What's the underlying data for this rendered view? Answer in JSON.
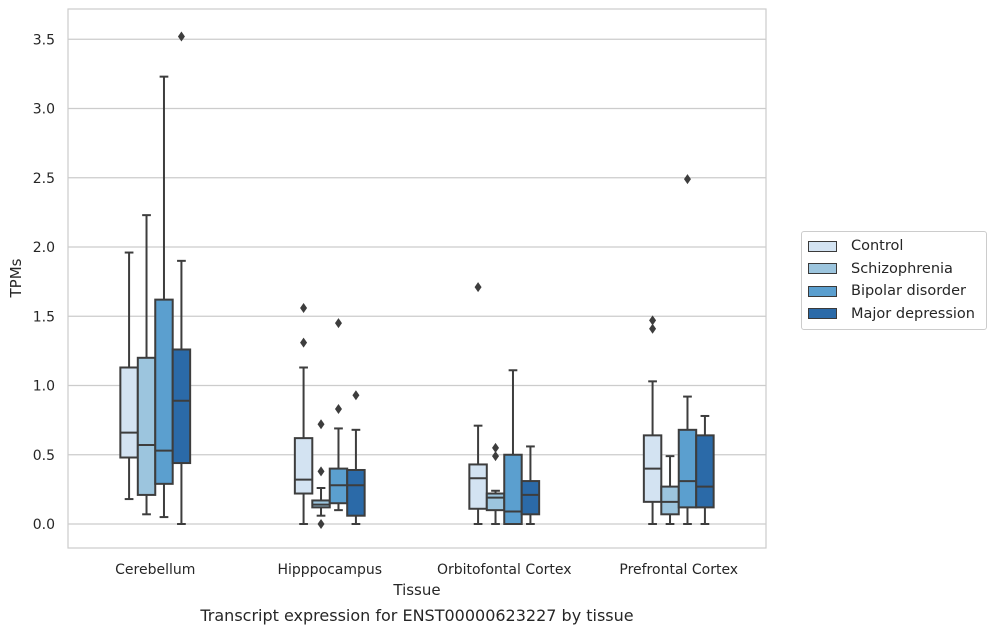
{
  "caption": "Transcript expression for ENST00000623227 by tissue",
  "chart_data": {
    "type": "box",
    "xlabel": "Tissue",
    "ylabel": "TPMs",
    "ylim": [
      -0.17,
      3.7
    ],
    "yticks": [
      0.0,
      0.5,
      1.0,
      1.5,
      2.0,
      2.5,
      3.0,
      3.5
    ],
    "ytick_labels": [
      "0.0",
      "0.5",
      "1.0",
      "1.5",
      "2.0",
      "2.5",
      "3.0",
      "3.5"
    ],
    "grid": "horizontal",
    "legend_position": "right",
    "categories": [
      "Cerebellum",
      "Hipppocampus",
      "Orbitofontal Cortex",
      "Prefrontal Cortex"
    ],
    "series": [
      {
        "name": "Control",
        "color": "#d3e3f2",
        "boxes": [
          {
            "whislo": 0.18,
            "q1": 0.48,
            "med": 0.66,
            "q3": 1.13,
            "whishi": 1.96,
            "fliers": []
          },
          {
            "whislo": 0.0,
            "q1": 0.22,
            "med": 0.32,
            "q3": 0.62,
            "whishi": 1.13,
            "fliers": [
              1.31,
              1.56
            ]
          },
          {
            "whislo": 0.0,
            "q1": 0.11,
            "med": 0.33,
            "q3": 0.43,
            "whishi": 0.71,
            "fliers": [
              1.71
            ]
          },
          {
            "whislo": 0.0,
            "q1": 0.16,
            "med": 0.4,
            "q3": 0.64,
            "whishi": 1.03,
            "fliers": [
              1.41,
              1.47
            ]
          }
        ]
      },
      {
        "name": "Schizophrenia",
        "color": "#9cc5de",
        "boxes": [
          {
            "whislo": 0.07,
            "q1": 0.21,
            "med": 0.57,
            "q3": 1.2,
            "whishi": 2.23,
            "fliers": []
          },
          {
            "whislo": 0.06,
            "q1": 0.12,
            "med": 0.14,
            "q3": 0.17,
            "whishi": 0.26,
            "fliers": [
              0.38,
              0.72,
              0.0
            ]
          },
          {
            "whislo": 0.0,
            "q1": 0.1,
            "med": 0.19,
            "q3": 0.22,
            "whishi": 0.24,
            "fliers": [
              0.49,
              0.55
            ]
          },
          {
            "whislo": 0.0,
            "q1": 0.07,
            "med": 0.16,
            "q3": 0.27,
            "whishi": 0.49,
            "fliers": []
          }
        ]
      },
      {
        "name": "Bipolar disorder",
        "color": "#5b9fcf",
        "boxes": [
          {
            "whislo": 0.05,
            "q1": 0.29,
            "med": 0.53,
            "q3": 1.62,
            "whishi": 3.23,
            "fliers": []
          },
          {
            "whislo": 0.1,
            "q1": 0.15,
            "med": 0.28,
            "q3": 0.4,
            "whishi": 0.69,
            "fliers": [
              0.83,
              1.45
            ]
          },
          {
            "whislo": 0.0,
            "q1": 0.0,
            "med": 0.09,
            "q3": 0.5,
            "whishi": 1.11,
            "fliers": []
          },
          {
            "whislo": 0.0,
            "q1": 0.12,
            "med": 0.31,
            "q3": 0.68,
            "whishi": 0.92,
            "fliers": [
              2.49
            ]
          }
        ]
      },
      {
        "name": "Major depression",
        "color": "#2b6aa8",
        "boxes": [
          {
            "whislo": 0.0,
            "q1": 0.44,
            "med": 0.89,
            "q3": 1.26,
            "whishi": 1.9,
            "fliers": [
              3.52
            ]
          },
          {
            "whislo": 0.0,
            "q1": 0.06,
            "med": 0.28,
            "q3": 0.39,
            "whishi": 0.68,
            "fliers": [
              0.93
            ]
          },
          {
            "whislo": 0.0,
            "q1": 0.07,
            "med": 0.21,
            "q3": 0.31,
            "whishi": 0.56,
            "fliers": []
          },
          {
            "whislo": 0.0,
            "q1": 0.12,
            "med": 0.27,
            "q3": 0.64,
            "whishi": 0.78,
            "fliers": []
          }
        ]
      }
    ]
  }
}
